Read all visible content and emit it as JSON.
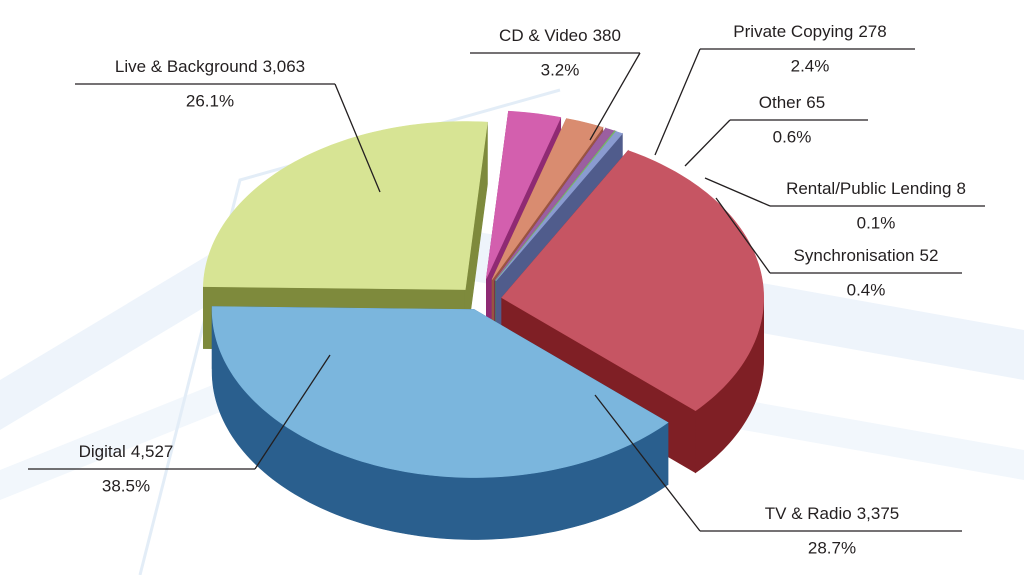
{
  "chart_data": {
    "type": "pie",
    "categories": [
      "Live & Background",
      "CD & Video",
      "Private Copying",
      "Other",
      "Rental/Public Lending",
      "Synchronisation",
      "TV & Radio",
      "Digital"
    ],
    "values": [
      3063,
      380,
      278,
      65,
      8,
      52,
      3375,
      4527
    ],
    "value_labels": [
      "3,063",
      "380",
      "278",
      "65",
      "8",
      "52",
      "3,375",
      "4,527"
    ],
    "percents": [
      26.1,
      3.2,
      2.4,
      0.6,
      0.1,
      0.4,
      28.7,
      38.5
    ],
    "percent_labels": [
      "26.1%",
      "3.2%",
      "2.4%",
      "0.6%",
      "0.1%",
      "0.4%",
      "28.7%",
      "38.5%"
    ],
    "colors": [
      "#d7e494",
      "#d35fae",
      "#d98c70",
      "#9b5fa0",
      "#7ab66a",
      "#8a9bd0",
      "#c65563",
      "#7bb6dd"
    ],
    "side_colors": [
      "#7e8a3c",
      "#8f2a73",
      "#9a5440",
      "#5e0f5a",
      "#4e8b3f",
      "#505c8c",
      "#7f1f25",
      "#2a5f8e"
    ]
  }
}
